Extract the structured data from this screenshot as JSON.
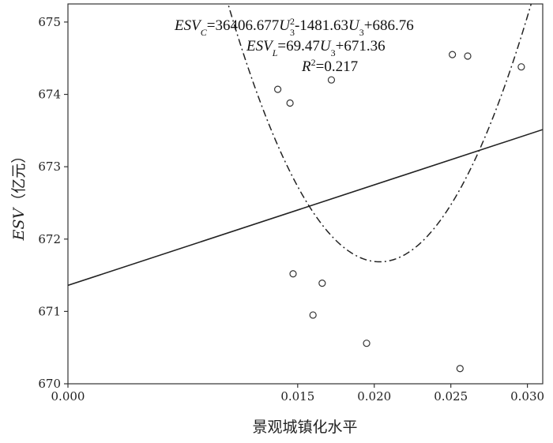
{
  "chart_data": {
    "type": "scatter",
    "xlabel": "景观城镇化水平",
    "ylabel_var": "ESV",
    "ylabel_unit": "（亿元）",
    "xlim": [
      0.0,
      0.031
    ],
    "ylim": [
      670.0,
      675.25
    ],
    "x_ticks": [
      "0.000",
      "0.015",
      "0.020",
      "0.025",
      "0.030"
    ],
    "y_ticks": [
      "670",
      "671",
      "672",
      "673",
      "674",
      "675"
    ],
    "points": [
      {
        "x": 0.0137,
        "y": 674.07
      },
      {
        "x": 0.0145,
        "y": 673.88
      },
      {
        "x": 0.0172,
        "y": 674.2
      },
      {
        "x": 0.0251,
        "y": 674.55
      },
      {
        "x": 0.0261,
        "y": 674.53
      },
      {
        "x": 0.0296,
        "y": 674.38
      },
      {
        "x": 0.0147,
        "y": 671.52
      },
      {
        "x": 0.0166,
        "y": 671.39
      },
      {
        "x": 0.016,
        "y": 670.95
      },
      {
        "x": 0.0195,
        "y": 670.56
      },
      {
        "x": 0.0256,
        "y": 670.21
      }
    ],
    "fits": {
      "linear": {
        "intercept": 671.36,
        "slope": 69.47
      },
      "quadratic": {
        "a": 36406.677,
        "b": -1481.63,
        "c": 686.76
      }
    },
    "equations": {
      "quadratic": {
        "lhs": "ESV",
        "lhs_sub": "C",
        "rhs_a": "=36406.677",
        "var": "U",
        "var_sub": "3",
        "var_sup": "2",
        "rhs_b": "-1481.63",
        "rhs_c": "+686.76"
      },
      "linear": {
        "lhs": "ESV",
        "lhs_sub": "L",
        "rhs_a": "=69.47",
        "var": "U",
        "var_sub": "3",
        "rhs_b": "+671.36"
      },
      "r2": {
        "lhs": "R",
        "lhs_sup": "2",
        "rhs": "=0.217"
      }
    },
    "grid": false,
    "legend": "none"
  }
}
